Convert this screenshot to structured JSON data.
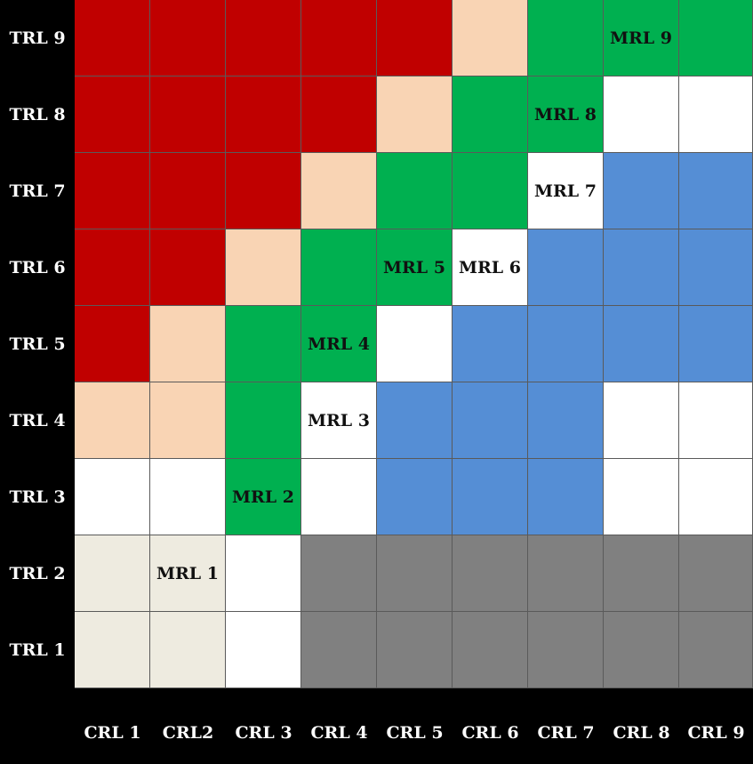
{
  "colors": {
    "R": "#c00000",
    "P": "#f9d4b4",
    "G": "#00b050",
    "W": "#ffffff",
    "B": "#558ed5",
    "K": "#808080",
    "C": "#eeebe0",
    "label_bg": "#000000",
    "label_text": "#ffffff",
    "grid_line": "#5a5a5a"
  },
  "row_labels": [
    "TRL 9",
    "TRL 8",
    "TRL 7",
    "TRL 6",
    "TRL 5",
    "TRL 4",
    "TRL 3",
    "TRL 2",
    "TRL 1"
  ],
  "col_labels": [
    "CRL 1",
    "CRL2",
    "CRL 3",
    "CRL 4",
    "CRL 5",
    "CRL 6",
    "CRL 7",
    "CRL 8",
    "CRL 9"
  ],
  "grid": [
    [
      "R",
      "R",
      "R",
      "R",
      "R",
      "P",
      "G",
      "G",
      "G"
    ],
    [
      "R",
      "R",
      "R",
      "R",
      "P",
      "G",
      "G",
      "W",
      "W"
    ],
    [
      "R",
      "R",
      "R",
      "P",
      "G",
      "G",
      "W",
      "B",
      "B"
    ],
    [
      "R",
      "R",
      "P",
      "G",
      "G",
      "W",
      "B",
      "B",
      "B"
    ],
    [
      "R",
      "P",
      "G",
      "G",
      "W",
      "B",
      "B",
      "B",
      "B"
    ],
    [
      "P",
      "P",
      "G",
      "W",
      "B",
      "B",
      "B",
      "W",
      "W"
    ],
    [
      "W",
      "W",
      "G",
      "W",
      "B",
      "B",
      "B",
      "W",
      "W"
    ],
    [
      "C",
      "C",
      "W",
      "K",
      "K",
      "K",
      "K",
      "K",
      "K"
    ],
    [
      "C",
      "C",
      "W",
      "K",
      "K",
      "K",
      "K",
      "K",
      "K"
    ]
  ],
  "cell_labels": [
    {
      "row": 0,
      "col": 7,
      "text": "MRL 9"
    },
    {
      "row": 1,
      "col": 6,
      "text": "MRL 8"
    },
    {
      "row": 2,
      "col": 6,
      "text": "MRL 7"
    },
    {
      "row": 3,
      "col": 4,
      "text": "MRL 5"
    },
    {
      "row": 3,
      "col": 5,
      "text": "MRL 6"
    },
    {
      "row": 4,
      "col": 3,
      "text": "MRL 4"
    },
    {
      "row": 5,
      "col": 3,
      "text": "MRL 3"
    },
    {
      "row": 6,
      "col": 2,
      "text": "MRL 2"
    },
    {
      "row": 7,
      "col": 1,
      "text": "MRL 1"
    }
  ]
}
